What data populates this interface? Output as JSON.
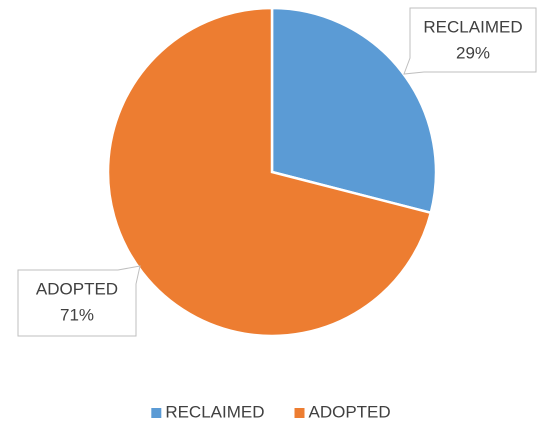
{
  "chart_data": {
    "type": "pie",
    "categories": [
      "RECLAIMED",
      "ADOPTED"
    ],
    "values": [
      29,
      71
    ],
    "value_labels": [
      "29%",
      "71%"
    ],
    "colors": [
      "#5b9bd5",
      "#ed7d31"
    ],
    "legend": "bottom"
  }
}
